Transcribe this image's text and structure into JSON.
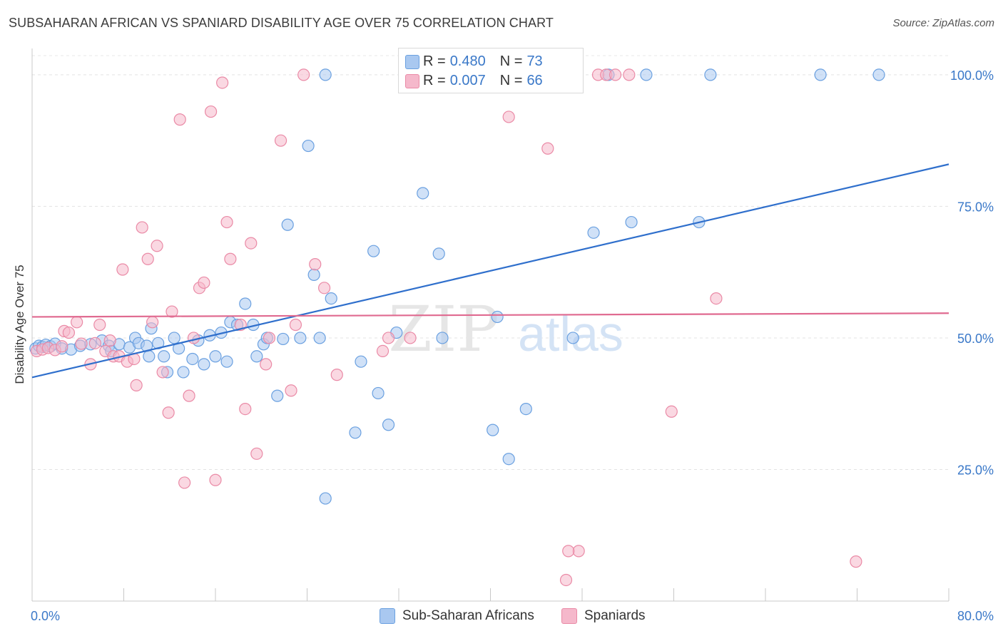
{
  "header": {
    "title": "SUBSAHARAN AFRICAN VS SPANIARD DISABILITY AGE OVER 75 CORRELATION CHART",
    "source": "Source: ZipAtlas.com"
  },
  "watermark": {
    "zip": "ZIP",
    "atlas": "atlas"
  },
  "legend_top": [
    {
      "r_label": "R =",
      "r_value": "0.480",
      "n_label": "N =",
      "n_value": "73",
      "color": "#a9c8f0"
    },
    {
      "r_label": "R =",
      "r_value": "0.007",
      "n_label": "N =",
      "n_value": "66",
      "color": "#f5b8cb"
    }
  ],
  "legend_bottom": [
    {
      "label": "Sub-Saharan Africans",
      "color": "#a9c8f0"
    },
    {
      "label": "Spaniards",
      "color": "#f5b8cb"
    }
  ],
  "chart_data": {
    "type": "scatter",
    "title": "SUBSAHARAN AFRICAN VS SPANIARD DISABILITY AGE OVER 75 CORRELATION CHART",
    "xlabel": "",
    "ylabel": "Disability Age Over 75",
    "xlim": [
      0,
      80
    ],
    "ylim": [
      0,
      105
    ],
    "x_tick_labels": [
      "0.0%",
      "80.0%"
    ],
    "y_ticks": [
      25,
      50,
      75,
      100
    ],
    "y_tick_labels": [
      "25.0%",
      "50.0%",
      "75.0%",
      "100.0%"
    ],
    "grid": true,
    "legend_position": "top-center",
    "series": [
      {
        "name": "Sub-Saharan Africans",
        "color": "#6aa0e0",
        "fill": "#a9c8f0",
        "line_color": "#2f6fcc",
        "trend": {
          "x": [
            0,
            80
          ],
          "y": [
            42.5,
            83
          ]
        },
        "points": [
          [
            0.3,
            48
          ],
          [
            0.6,
            48.5
          ],
          [
            0.9,
            48.3
          ],
          [
            1.2,
            48.7
          ],
          [
            1.6,
            48.4
          ],
          [
            2.0,
            48.9
          ],
          [
            2.6,
            48
          ],
          [
            3.4,
            47.8
          ],
          [
            4.2,
            48.5
          ],
          [
            5.1,
            48.8
          ],
          [
            6.1,
            49.5
          ],
          [
            6.7,
            48.5
          ],
          [
            6.9,
            47.5
          ],
          [
            7.6,
            48.8
          ],
          [
            8.5,
            48.2
          ],
          [
            9.0,
            50
          ],
          [
            9.3,
            49
          ],
          [
            10.0,
            48.5
          ],
          [
            10.2,
            46.5
          ],
          [
            10.4,
            51.8
          ],
          [
            11.0,
            49
          ],
          [
            11.5,
            46.5
          ],
          [
            11.8,
            43.5
          ],
          [
            12.4,
            50
          ],
          [
            12.8,
            48
          ],
          [
            13.2,
            43.5
          ],
          [
            14.0,
            46
          ],
          [
            14.5,
            49.5
          ],
          [
            15.0,
            45
          ],
          [
            15.5,
            50.5
          ],
          [
            16.0,
            46.5
          ],
          [
            16.5,
            51
          ],
          [
            17.0,
            45.5
          ],
          [
            17.3,
            53
          ],
          [
            17.9,
            52.5
          ],
          [
            18.6,
            56.5
          ],
          [
            19.3,
            52.5
          ],
          [
            19.6,
            46.5
          ],
          [
            20.2,
            48.8
          ],
          [
            20.5,
            50
          ],
          [
            21.4,
            39
          ],
          [
            21.9,
            49.8
          ],
          [
            22.3,
            71.5
          ],
          [
            23.4,
            50
          ],
          [
            24.1,
            86.5
          ],
          [
            24.6,
            62
          ],
          [
            25.1,
            50
          ],
          [
            25.6,
            100
          ],
          [
            25.6,
            19.5
          ],
          [
            26.1,
            57.5
          ],
          [
            28.2,
            32
          ],
          [
            28.7,
            45.5
          ],
          [
            29.8,
            66.5
          ],
          [
            30.2,
            39.5
          ],
          [
            31.1,
            33.5
          ],
          [
            31.8,
            51
          ],
          [
            33.0,
            100
          ],
          [
            34.1,
            77.5
          ],
          [
            35.5,
            66
          ],
          [
            35.8,
            50
          ],
          [
            40.2,
            32.5
          ],
          [
            40.6,
            54
          ],
          [
            41.6,
            27
          ],
          [
            43.1,
            36.5
          ],
          [
            47.2,
            50
          ],
          [
            49.0,
            70
          ],
          [
            50.3,
            100
          ],
          [
            52.3,
            72
          ],
          [
            53.6,
            100
          ],
          [
            58.2,
            72
          ],
          [
            59.2,
            100
          ],
          [
            68.8,
            100
          ],
          [
            73.9,
            100
          ]
        ]
      },
      {
        "name": "Spaniards",
        "color": "#ea8aa6",
        "fill": "#f5b8cb",
        "line_color": "#e06a90",
        "trend": {
          "x": [
            0,
            80
          ],
          "y": [
            54,
            54.7
          ]
        },
        "points": [
          [
            0.4,
            47.5
          ],
          [
            0.9,
            47.8
          ],
          [
            1.4,
            48.1
          ],
          [
            2.0,
            47.7
          ],
          [
            2.6,
            48.4
          ],
          [
            2.8,
            51.3
          ],
          [
            3.2,
            51
          ],
          [
            3.9,
            53
          ],
          [
            4.3,
            48.9
          ],
          [
            5.1,
            45
          ],
          [
            5.5,
            49
          ],
          [
            5.9,
            52.5
          ],
          [
            6.4,
            47.5
          ],
          [
            6.8,
            49.5
          ],
          [
            7.1,
            46.5
          ],
          [
            7.6,
            46.5
          ],
          [
            7.9,
            63
          ],
          [
            8.3,
            45.5
          ],
          [
            8.9,
            46
          ],
          [
            9.1,
            41
          ],
          [
            9.6,
            71
          ],
          [
            10.1,
            65
          ],
          [
            10.5,
            53
          ],
          [
            10.9,
            67.5
          ],
          [
            11.4,
            43.5
          ],
          [
            11.9,
            35.8
          ],
          [
            12.2,
            55
          ],
          [
            12.9,
            91.5
          ],
          [
            13.3,
            22.5
          ],
          [
            13.7,
            39
          ],
          [
            14.1,
            50
          ],
          [
            14.6,
            59.5
          ],
          [
            15.0,
            60.5
          ],
          [
            15.6,
            93
          ],
          [
            16.0,
            23
          ],
          [
            16.6,
            98.5
          ],
          [
            17.0,
            72
          ],
          [
            17.3,
            65
          ],
          [
            18.2,
            52.5
          ],
          [
            18.6,
            36.5
          ],
          [
            19.1,
            68
          ],
          [
            19.6,
            28
          ],
          [
            20.4,
            45
          ],
          [
            20.7,
            50
          ],
          [
            21.7,
            87.5
          ],
          [
            22.6,
            40
          ],
          [
            23.0,
            52.5
          ],
          [
            23.7,
            100
          ],
          [
            24.7,
            64
          ],
          [
            25.5,
            59.5
          ],
          [
            26.6,
            43
          ],
          [
            30.6,
            47.5
          ],
          [
            31.1,
            50
          ],
          [
            33.0,
            50
          ],
          [
            41.6,
            92
          ],
          [
            45.0,
            86
          ],
          [
            47.7,
            9.5
          ],
          [
            49.4,
            100
          ],
          [
            50.1,
            100
          ],
          [
            50.9,
            100
          ],
          [
            52.1,
            100
          ],
          [
            55.8,
            36
          ],
          [
            59.7,
            57.5
          ],
          [
            46.8,
            9.5
          ],
          [
            46.6,
            4
          ],
          [
            71.9,
            7.5
          ]
        ]
      }
    ]
  }
}
